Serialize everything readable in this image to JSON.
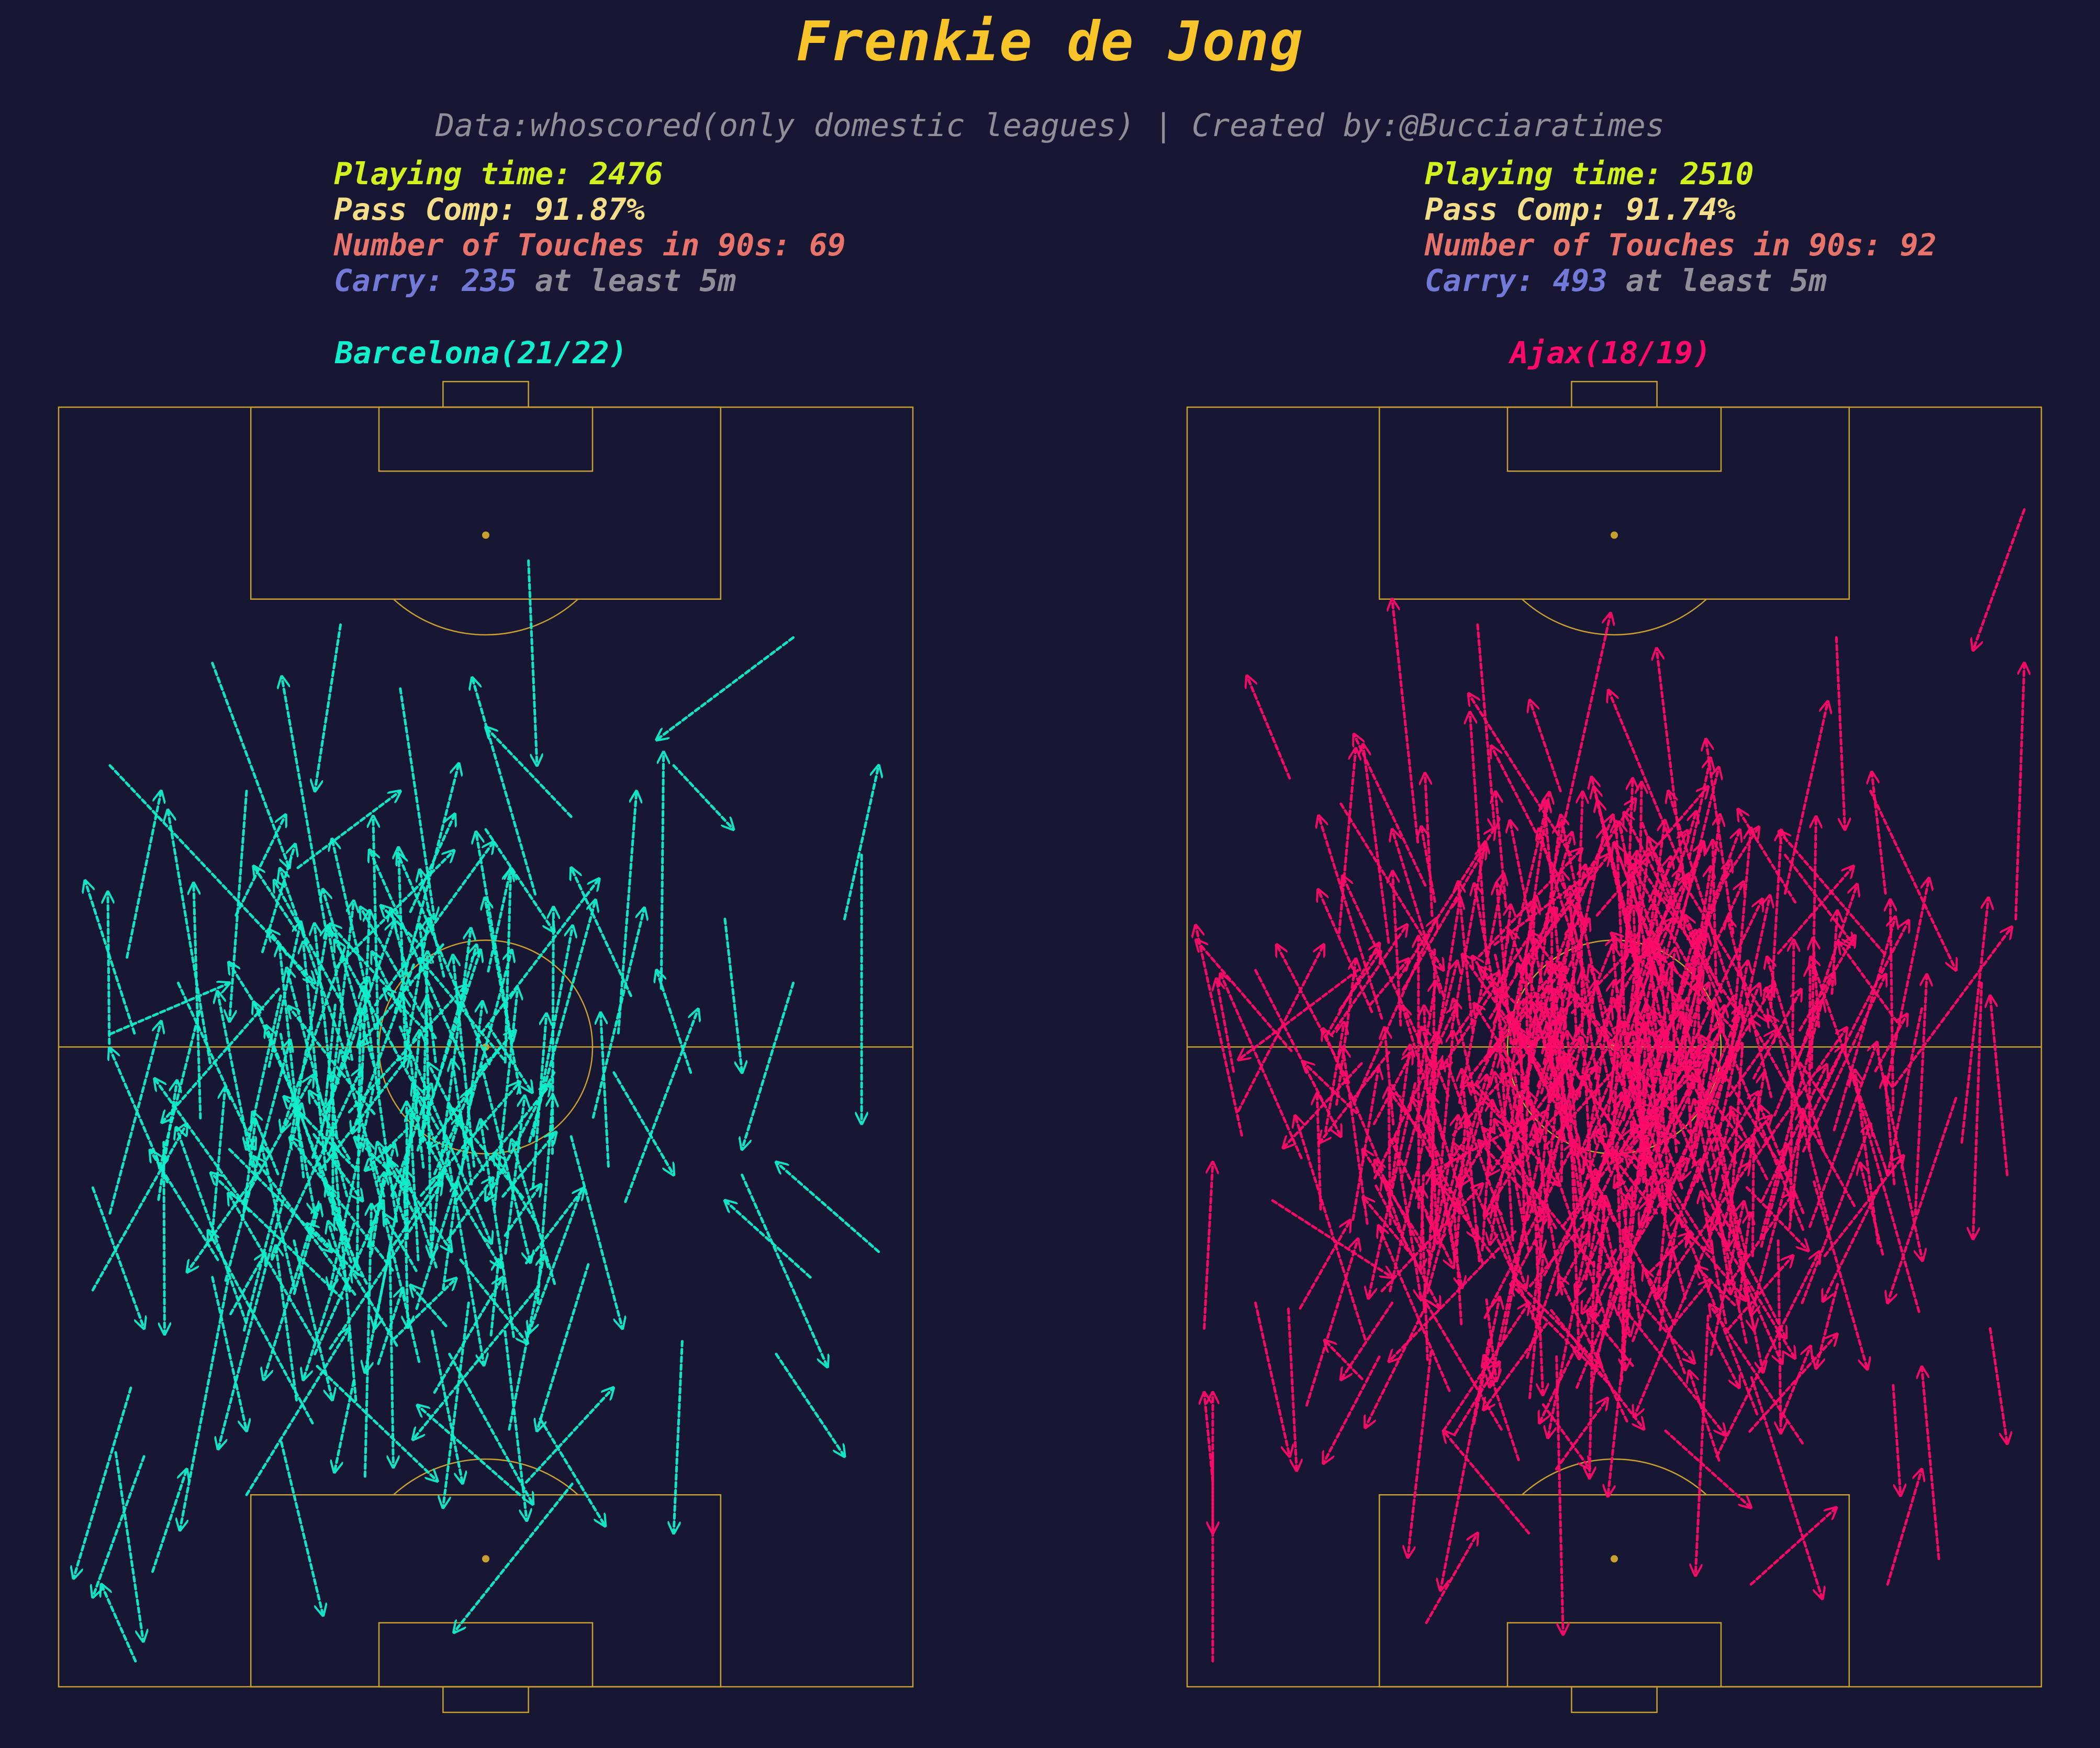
{
  "title": "Frenkie de Jong",
  "subtitle": "Data:whoscored(only domestic leagues) | Created by:@Bucciaratimes",
  "colors": {
    "background": "#171733",
    "title": "#f7c42a",
    "pitch_lines": "#c9a030",
    "playing_time": "#d2f21f",
    "pass_comp": "#f5de8a",
    "touches": "#e8736a",
    "carry": "#7279d6",
    "carry_suffix": "#8f8f9a",
    "barcelona": "#10f0cc",
    "ajax": "#ff0a6a"
  },
  "panels": [
    {
      "team": "Barcelona(21/22)",
      "playing_time_label": "Playing time: 2476",
      "pass_comp_label": "Pass Comp: 91.87%",
      "touches_label": "Number of Touches in 90s: 69",
      "carry_prefix": "Carry: ",
      "carry_count": "235",
      "carry_suffix": " at least 5m"
    },
    {
      "team": "Ajax(18/19)",
      "playing_time_label": "Playing time: 2510",
      "pass_comp_label": "Pass Comp: 91.74%",
      "touches_label": "Number of Touches in 90s: 92",
      "carry_prefix": "Carry: ",
      "carry_count": "493",
      "carry_suffix": " at least 5m"
    }
  ],
  "chart_data": [
    {
      "type": "scatter",
      "title": "Barcelona(21/22)",
      "series": [
        {
          "name": "Barcelona(21/22)",
          "carries": [
            [
              6,
              28,
              30,
              45
            ],
            [
              22,
              30,
              20,
              48
            ],
            [
              18,
              20,
              27,
              36
            ],
            [
              33,
              17,
              30,
              30
            ],
            [
              14,
              45,
              23,
              58
            ],
            [
              40,
              22,
              44,
              40
            ],
            [
              55,
              12,
              56,
              28
            ],
            [
              86,
              18,
              70,
              26
            ],
            [
              78,
              40,
              80,
              52
            ],
            [
              94,
              35,
              94,
              56
            ],
            [
              42,
              54,
              37,
              72
            ],
            [
              30,
              63,
              24,
              76
            ],
            [
              48,
              70,
              45,
              86
            ],
            [
              62,
              67,
              56,
              80
            ],
            [
              73,
              73,
              72,
              88
            ],
            [
              4,
              69,
              15,
              56
            ],
            [
              10,
              82,
              4,
              93
            ],
            [
              20,
              58,
              32,
              66
            ],
            [
              58,
              52,
              50,
              62
            ],
            [
              65,
              52,
              72,
              60
            ],
            [
              6,
              63,
              12,
              48
            ],
            [
              8,
              43,
              12,
              30
            ],
            [
              26,
              46,
              22,
              58
            ],
            [
              28,
              36,
              40,
              30
            ],
            [
              45,
              42,
              35,
              50
            ],
            [
              50,
              33,
              58,
              41
            ],
            [
              60,
              32,
              50,
              25
            ],
            [
              67,
              46,
              60,
              36
            ],
            [
              72,
              28,
              79,
              33
            ],
            [
              86,
              45,
              80,
              58
            ],
            [
              92,
              40,
              96,
              28
            ],
            [
              88,
              68,
              78,
              62
            ],
            [
              80,
              60,
              90,
              75
            ],
            [
              11,
              91,
              15,
              83
            ],
            [
              9,
              98,
              5,
              92
            ],
            [
              54,
              85,
              42,
              78
            ],
            [
              22,
              85,
              34,
              72
            ],
            [
              96,
              66,
              84,
              59
            ],
            [
              4,
              61,
              10,
              72
            ],
            [
              6,
              49,
              20,
              45
            ],
            [
              26,
              49,
              30,
              63
            ],
            [
              38,
              58,
              46,
              66
            ],
            [
              60,
              57,
              66,
              72
            ],
            [
              30,
              74,
              38,
              62
            ],
            [
              74,
              52,
              70,
              44
            ],
            [
              18,
              68,
              22,
              80
            ],
            [
              84,
              74,
              92,
              82
            ],
            [
              44,
              77,
              52,
              68
            ]
          ],
          "dense_carries_note": "plus ~190 further carries concentrated in midfield",
          "count": 235
        }
      ]
    },
    {
      "type": "scatter",
      "title": "Ajax(18/19)",
      "series": [
        {
          "name": "Ajax(18/19)",
          "carries": [
            [
              3,
              98,
              3,
              77
            ],
            [
              2,
              72,
              3,
              59
            ],
            [
              30,
              46,
              24,
              33
            ],
            [
              34,
              17,
              36,
              33
            ],
            [
              27,
              34,
              24,
              15
            ],
            [
              12,
              29,
              7,
              21
            ],
            [
              70,
              38,
              75,
              23
            ],
            [
              76,
              18,
              77,
              33
            ],
            [
              97,
              40,
              98,
              20
            ],
            [
              98,
              8,
              92,
              19
            ],
            [
              3,
              82,
              3,
              88
            ],
            [
              28,
              95,
              34,
              88
            ],
            [
              82,
              92,
              86,
              83
            ],
            [
              62,
              82,
              74,
              66
            ],
            [
              88,
              90,
              86,
              75
            ],
            [
              40,
              66,
              36,
              52
            ],
            [
              44,
              64,
              60,
              50
            ],
            [
              24,
              70,
              18,
              76
            ],
            [
              94,
              72,
              96,
              81
            ],
            [
              93,
              45,
              92,
              65
            ],
            [
              8,
              44,
              18,
              57
            ],
            [
              18,
              31,
              30,
              44
            ],
            [
              50,
              34,
              56,
              45
            ],
            [
              64,
              46,
              50,
              61
            ],
            [
              70,
              35,
              78,
              42
            ],
            [
              86,
              47,
              82,
              60
            ],
            [
              42,
              55,
              28,
              60
            ],
            [
              10,
              62,
              24,
              68
            ],
            [
              72,
              70,
              80,
              56
            ],
            [
              14,
              78,
              20,
              65
            ],
            [
              30,
              80,
              40,
              70
            ],
            [
              56,
              80,
              66,
              86
            ],
            [
              20,
              44,
              6,
              51
            ],
            [
              80,
              30,
              90,
              44
            ],
            [
              48,
              74,
              54,
              62
            ],
            [
              6,
              55,
              16,
              42
            ],
            [
              36,
              42,
              48,
              36
            ],
            [
              58,
              37,
              68,
              48
            ],
            [
              24,
              53,
              34,
              65
            ],
            [
              90,
              54,
              82,
              70
            ],
            [
              3,
              84,
              2,
              77
            ],
            [
              96,
              60,
              94,
              46
            ],
            [
              66,
              92,
              76,
              86
            ],
            [
              40,
              88,
              30,
              80
            ],
            [
              8,
              70,
              12,
              82
            ]
          ],
          "dense_carries_note": "plus ~450 further carries concentrated across midfield",
          "count": 493
        }
      ]
    }
  ]
}
